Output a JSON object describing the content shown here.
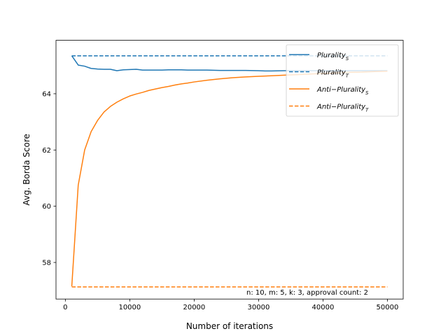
{
  "chart_data": {
    "type": "line",
    "title": "",
    "xlabel": "Number of iterations",
    "ylabel": "Avg. Borda Score",
    "xlim": [
      -1450,
      52450
    ],
    "ylim": [
      56.7,
      65.9
    ],
    "xticks": [
      0,
      10000,
      20000,
      30000,
      40000,
      50000
    ],
    "xtick_labels": [
      "0",
      "10000",
      "20000",
      "30000",
      "40000",
      "50000"
    ],
    "yticks": [
      58,
      60,
      62,
      64
    ],
    "ytick_labels": [
      "58",
      "60",
      "62",
      "64"
    ],
    "grid": false,
    "legend_position": "top-right",
    "annotation": "n: 10, m: 5, k: 3, approval count: 2",
    "series": [
      {
        "name": "Plurality",
        "name_subscript": "S",
        "color": "#1f77b4",
        "style": "solid",
        "x": [
          1000,
          2000,
          3000,
          4000,
          5000,
          6000,
          7000,
          8000,
          9000,
          10000,
          11000,
          12000,
          13000,
          14000,
          15000,
          16000,
          17000,
          18000,
          19000,
          20000,
          22000,
          24000,
          26000,
          28000,
          30000,
          31000,
          32000,
          34000,
          36000,
          38000,
          40000,
          42000,
          44000,
          46000,
          48000,
          50000
        ],
        "values": [
          65.35,
          65.02,
          64.98,
          64.9,
          64.88,
          64.87,
          64.87,
          64.82,
          64.85,
          64.86,
          64.87,
          64.84,
          64.84,
          64.84,
          64.84,
          64.85,
          64.85,
          64.85,
          64.84,
          64.84,
          64.84,
          64.83,
          64.83,
          64.83,
          64.82,
          64.81,
          64.81,
          64.82,
          64.82,
          64.82,
          64.82,
          64.82,
          64.82,
          64.82,
          64.82,
          64.82
        ]
      },
      {
        "name": "Plurality",
        "name_subscript": "T",
        "color": "#1f77b4",
        "style": "dashed",
        "x": [
          1000,
          50000
        ],
        "values": [
          65.35,
          65.35
        ]
      },
      {
        "name": "Anti−Plurality",
        "name_subscript": "S",
        "color": "#ff7f0e",
        "style": "solid",
        "x": [
          1000,
          2000,
          3000,
          4000,
          5000,
          6000,
          7000,
          8000,
          9000,
          10000,
          11000,
          12000,
          13000,
          14000,
          15000,
          16000,
          17000,
          18000,
          19000,
          20000,
          22000,
          24000,
          26000,
          28000,
          30000,
          32000,
          34000,
          36000,
          38000,
          40000,
          42000,
          44000,
          46000,
          48000,
          50000
        ],
        "values": [
          57.15,
          60.75,
          62.0,
          62.65,
          63.05,
          63.35,
          63.55,
          63.7,
          63.82,
          63.92,
          63.99,
          64.05,
          64.12,
          64.17,
          64.22,
          64.26,
          64.31,
          64.35,
          64.38,
          64.42,
          64.48,
          64.53,
          64.57,
          64.6,
          64.62,
          64.64,
          64.66,
          64.68,
          64.7,
          64.72,
          64.74,
          64.76,
          64.77,
          64.79,
          64.8
        ]
      },
      {
        "name": "Anti−Plurality",
        "name_subscript": "T",
        "color": "#ff7f0e",
        "style": "dashed",
        "x": [
          1000,
          50000
        ],
        "values": [
          57.13,
          57.13
        ]
      }
    ]
  }
}
